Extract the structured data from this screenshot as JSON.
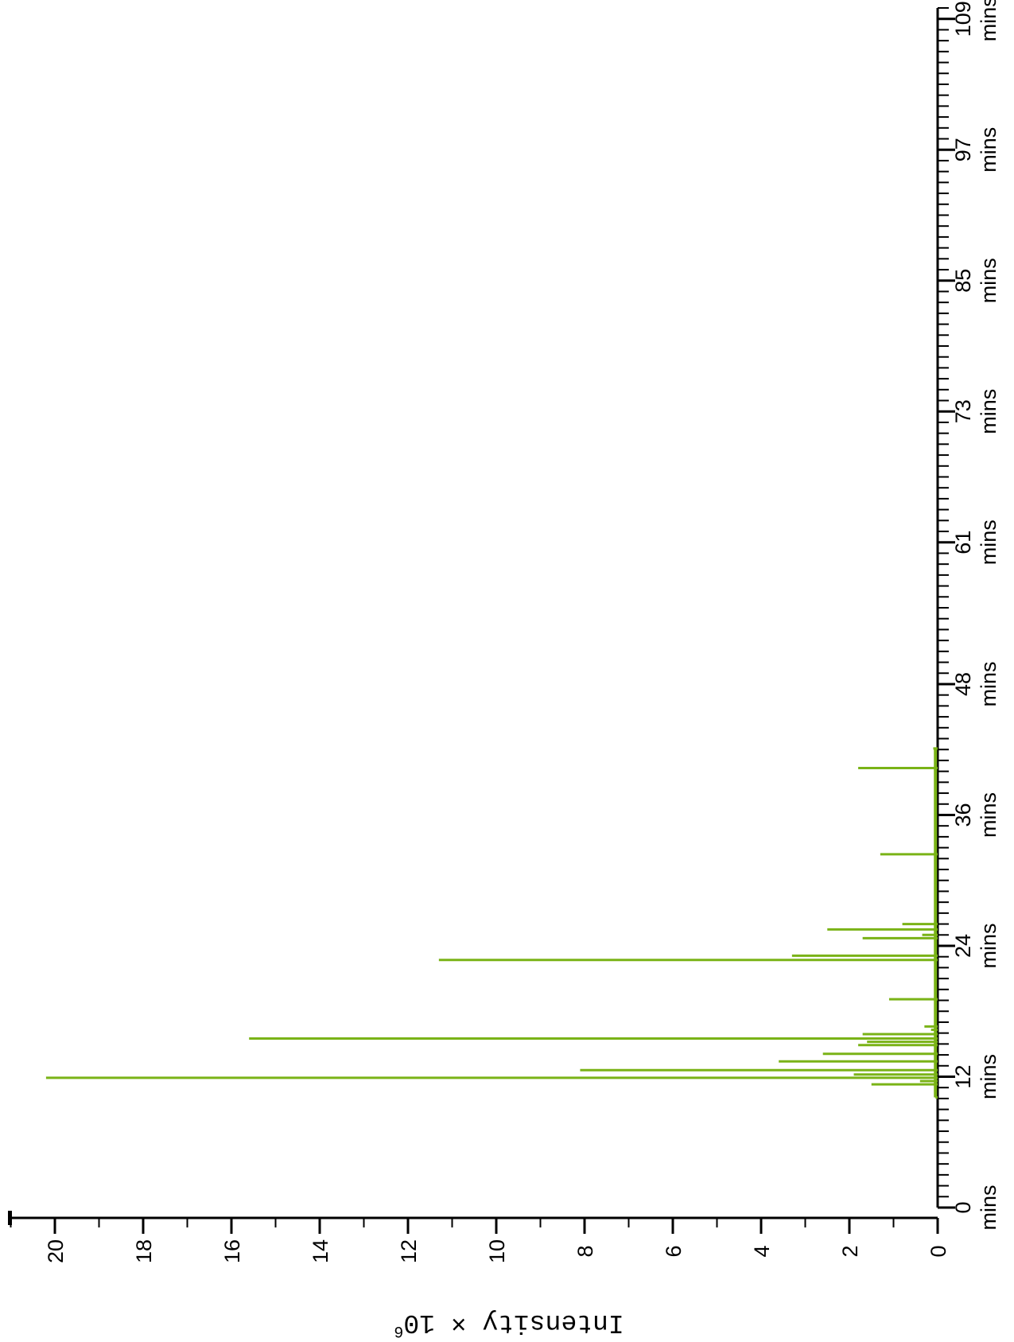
{
  "chart_data": {
    "type": "line",
    "orientation": "rotated-90-clockwise",
    "title": "",
    "ylabel": "Intensity × 10",
    "ylabel_exponent": "6",
    "xlim": [
      0,
      110
    ],
    "ylim": [
      0,
      21
    ],
    "x_major_ticks": [
      0,
      12,
      24,
      36,
      48,
      61,
      73,
      85,
      97,
      109
    ],
    "x_tick_unit": "mins",
    "y_major_ticks": [
      0,
      2,
      4,
      6,
      8,
      10,
      12,
      14,
      16,
      18,
      20
    ],
    "y_tick_labels": [
      "0",
      "2",
      "4",
      "6",
      "8",
      "10",
      "12",
      "14",
      "16",
      "18",
      "20"
    ],
    "x_minor_tick_step": 1,
    "y_minor_tick_step": 1,
    "grid": false,
    "series": [
      {
        "color": "#7ab317",
        "peaks": [
          {
            "x": 10.1,
            "y": 0.05
          },
          {
            "x": 11.3,
            "y": 1.5
          },
          {
            "x": 11.6,
            "y": 0.4
          },
          {
            "x": 11.9,
            "y": 20.2
          },
          {
            "x": 12.2,
            "y": 1.9
          },
          {
            "x": 12.6,
            "y": 8.1
          },
          {
            "x": 13.4,
            "y": 3.6
          },
          {
            "x": 14.1,
            "y": 2.6
          },
          {
            "x": 14.9,
            "y": 1.8
          },
          {
            "x": 15.2,
            "y": 1.6
          },
          {
            "x": 15.5,
            "y": 15.6
          },
          {
            "x": 15.9,
            "y": 1.7
          },
          {
            "x": 16.3,
            "y": 0.15
          },
          {
            "x": 16.6,
            "y": 0.3
          },
          {
            "x": 19.1,
            "y": 1.1
          },
          {
            "x": 22.7,
            "y": 11.3
          },
          {
            "x": 23.1,
            "y": 3.3
          },
          {
            "x": 24.7,
            "y": 1.7
          },
          {
            "x": 25.0,
            "y": 0.35
          },
          {
            "x": 25.5,
            "y": 2.5
          },
          {
            "x": 26.0,
            "y": 0.8
          },
          {
            "x": 32.4,
            "y": 1.3
          },
          {
            "x": 40.3,
            "y": 1.8
          },
          {
            "x": 42.1,
            "y": 0.1
          }
        ]
      }
    ]
  }
}
